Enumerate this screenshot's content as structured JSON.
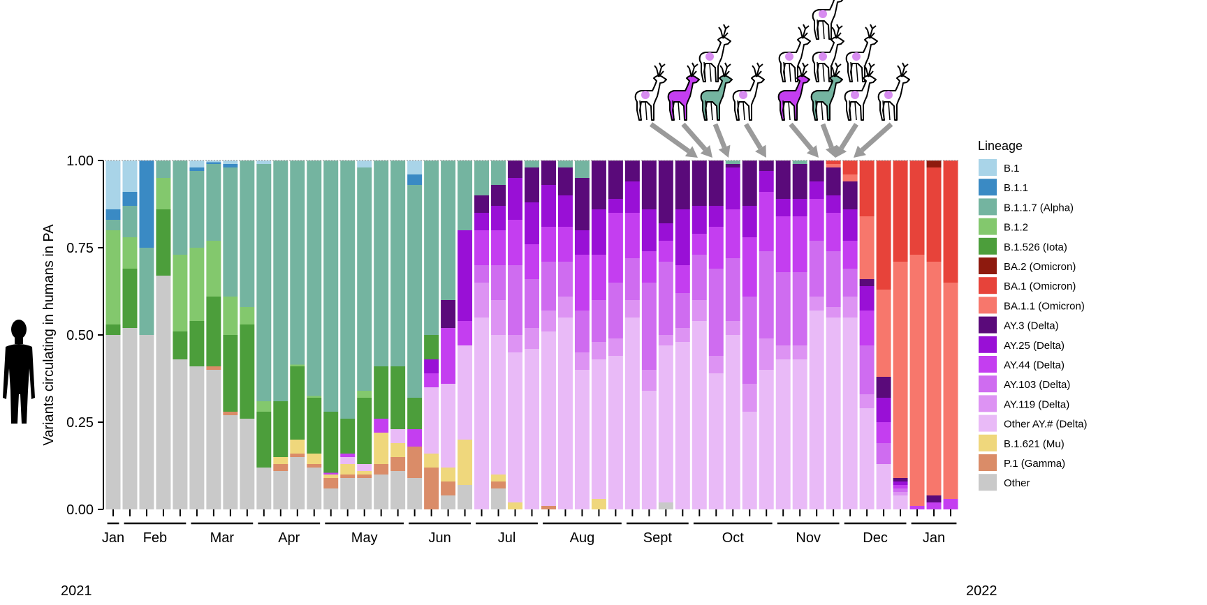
{
  "colors": {
    "B.1": "#a9d4e8",
    "B.1.1": "#3a8ac4",
    "B.1.1.7 (Alpha)": "#74b4a0",
    "B.1.2": "#83c86d",
    "B.1.526 (Iota)": "#4c9e3b",
    "BA.2 (Omicron)": "#8e1a0e",
    "BA.1 (Omicron)": "#e7433a",
    "BA.1.1 (Omicron)": "#f7776c",
    "AY.3 (Delta)": "#5a0a7a",
    "AY.25 (Delta)": "#9910d6",
    "AY.44 (Delta)": "#c43ef0",
    "AY.103 (Delta)": "#cf6cf0",
    "AY.119 (Delta)": "#dd93f3",
    "Other AY.# (Delta)": "#e9baf7",
    "B.1.621 (Mu)": "#efd77c",
    "P.1 (Gamma)": "#da8c68",
    "Other": "#c9c9c9",
    "arrow": "#9a9a9a",
    "deer_white": "#ffffff",
    "deer_dot": "#d78cf0"
  },
  "icons": [
    "human-silhouette-icon",
    "deer-icon"
  ],
  "chart_data": {
    "type": "bar",
    "stacked": true,
    "ylabel": "Variants circulating in humans in PA",
    "ylim": [
      0,
      1
    ],
    "yticks": [
      "0.00",
      "0.25",
      "0.50",
      "0.75",
      "1.00"
    ],
    "xlabel": "",
    "year_labels": [
      "2021",
      "2022"
    ],
    "months": [
      {
        "label": "Jan",
        "from": 0,
        "to": 0
      },
      {
        "label": "Feb",
        "from": 1,
        "to": 4
      },
      {
        "label": "Mar",
        "from": 5,
        "to": 8
      },
      {
        "label": "Apr",
        "from": 9,
        "to": 12
      },
      {
        "label": "May",
        "from": 13,
        "to": 17
      },
      {
        "label": "Jun",
        "from": 18,
        "to": 21
      },
      {
        "label": "Jul",
        "from": 22,
        "to": 25
      },
      {
        "label": "Aug",
        "from": 26,
        "to": 30
      },
      {
        "label": "Sept",
        "from": 31,
        "to": 34
      },
      {
        "label": "Oct",
        "from": 35,
        "to": 39
      },
      {
        "label": "Nov",
        "from": 40,
        "to": 43
      },
      {
        "label": "Dec",
        "from": 44,
        "to": 47
      },
      {
        "label": "Jan",
        "from": 48,
        "to": 50
      }
    ],
    "legend_title": "Lineage",
    "legend_position": "right",
    "series_order": [
      "Other",
      "P.1 (Gamma)",
      "B.1.621 (Mu)",
      "Other AY.# (Delta)",
      "AY.119 (Delta)",
      "AY.103 (Delta)",
      "AY.44 (Delta)",
      "AY.25 (Delta)",
      "AY.3 (Delta)",
      "BA.1.1 (Omicron)",
      "BA.1 (Omicron)",
      "BA.2 (Omicron)",
      "B.1.526 (Iota)",
      "B.1.2",
      "B.1.1.7 (Alpha)",
      "B.1.1",
      "B.1"
    ],
    "legend": [
      "B.1",
      "B.1.1",
      "B.1.1.7 (Alpha)",
      "B.1.2",
      "B.1.526 (Iota)",
      "BA.2 (Omicron)",
      "BA.1 (Omicron)",
      "BA.1.1 (Omicron)",
      "AY.3 (Delta)",
      "AY.25 (Delta)",
      "AY.44 (Delta)",
      "AY.103 (Delta)",
      "AY.119 (Delta)",
      "Other AY.# (Delta)",
      "B.1.621 (Mu)",
      "P.1 (Gamma)",
      "Other"
    ],
    "bars": [
      {
        "Other": 0.5,
        "B.1.526 (Iota)": 0.03,
        "B.1.2": 0.27,
        "B.1.1.7 (Alpha)": 0.03,
        "B.1.1": 0.03,
        "B.1": 0.14
      },
      {
        "Other": 0.52,
        "B.1.526 (Iota)": 0.17,
        "B.1.2": 0.09,
        "B.1.1.7 (Alpha)": 0.09,
        "B.1.1": 0.04,
        "B.1": 0.09
      },
      {
        "Other": 0.5,
        "B.1.1.7 (Alpha)": 0.25,
        "B.1.1": 0.25
      },
      {
        "Other": 0.67,
        "B.1.526 (Iota)": 0.19,
        "B.1.2": 0.09,
        "B.1.1.7 (Alpha)": 0.05
      },
      {
        "Other": 0.43,
        "B.1.526 (Iota)": 0.08,
        "B.1.2": 0.22,
        "B.1.1.7 (Alpha)": 0.27
      },
      {
        "Other": 0.41,
        "B.1.526 (Iota)": 0.13,
        "B.1.2": 0.21,
        "B.1.1.7 (Alpha)": 0.22,
        "B.1.1": 0.01,
        "B.1": 0.02
      },
      {
        "Other": 0.4,
        "P.1 (Gamma)": 0.01,
        "B.1.526 (Iota)": 0.2,
        "B.1.2": 0.16,
        "B.1.1.7 (Alpha)": 0.22,
        "B.1.1": 0.005,
        "B.1": 0.005
      },
      {
        "Other": 0.27,
        "P.1 (Gamma)": 0.01,
        "B.1.526 (Iota)": 0.22,
        "B.1.2": 0.11,
        "B.1.1.7 (Alpha)": 0.37,
        "B.1.1": 0.01,
        "B.1": 0.01
      },
      {
        "Other": 0.26,
        "B.1.526 (Iota)": 0.27,
        "B.1.2": 0.05,
        "B.1.1.7 (Alpha)": 0.42
      },
      {
        "Other": 0.12,
        "B.1.526 (Iota)": 0.16,
        "B.1.2": 0.03,
        "B.1.1.7 (Alpha)": 0.68,
        "B.1": 0.01
      },
      {
        "Other": 0.11,
        "P.1 (Gamma)": 0.02,
        "B.1.621 (Mu)": 0.02,
        "B.1.526 (Iota)": 0.16,
        "B.1.1.7 (Alpha)": 0.69
      },
      {
        "Other": 0.15,
        "P.1 (Gamma)": 0.01,
        "B.1.621 (Mu)": 0.04,
        "B.1.526 (Iota)": 0.21,
        "B.1.2": 0.005,
        "B.1.1.7 (Alpha)": 0.585
      },
      {
        "Other": 0.12,
        "P.1 (Gamma)": 0.01,
        "B.1.621 (Mu)": 0.03,
        "B.1.526 (Iota)": 0.16,
        "B.1.2": 0.005,
        "B.1.1.7 (Alpha)": 0.675
      },
      {
        "Other": 0.06,
        "P.1 (Gamma)": 0.03,
        "B.1.621 (Mu)": 0.01,
        "AY.44 (Delta)": 0.005,
        "B.1.526 (Iota)": 0.175,
        "B.1.1.7 (Alpha)": 0.72
      },
      {
        "Other": 0.09,
        "P.1 (Gamma)": 0.01,
        "B.1.621 (Mu)": 0.03,
        "Other AY.# (Delta)": 0.02,
        "AY.44 (Delta)": 0.01,
        "B.1.526 (Iota)": 0.1,
        "B.1.1.7 (Alpha)": 0.74
      },
      {
        "Other": 0.09,
        "P.1 (Gamma)": 0.01,
        "B.1.621 (Mu)": 0.01,
        "Other AY.# (Delta)": 0.02,
        "B.1.526 (Iota)": 0.19,
        "B.1.2": 0.02,
        "B.1.1.7 (Alpha)": 0.64,
        "B.1": 0.02
      },
      {
        "Other": 0.1,
        "P.1 (Gamma)": 0.03,
        "B.1.621 (Mu)": 0.09,
        "AY.44 (Delta)": 0.04,
        "B.1.526 (Iota)": 0.15,
        "B.1.1.7 (Alpha)": 0.59
      },
      {
        "Other": 0.11,
        "P.1 (Gamma)": 0.04,
        "B.1.621 (Mu)": 0.04,
        "Other AY.# (Delta)": 0.04,
        "B.1.526 (Iota)": 0.18,
        "B.1.1.7 (Alpha)": 0.59
      },
      {
        "Other": 0.09,
        "P.1 (Gamma)": 0.09,
        "AY.44 (Delta)": 0.05,
        "B.1.526 (Iota)": 0.09,
        "B.1.1.7 (Alpha)": 0.61,
        "B.1.1": 0.03,
        "B.1": 0.04
      },
      {
        "P.1 (Gamma)": 0.12,
        "B.1.621 (Mu)": 0.04,
        "Other AY.# (Delta)": 0.19,
        "AY.44 (Delta)": 0.04,
        "AY.25 (Delta)": 0.04,
        "B.1.526 (Iota)": 0.07,
        "B.1.1.7 (Alpha)": 0.5
      },
      {
        "Other": 0.04,
        "P.1 (Gamma)": 0.04,
        "B.1.621 (Mu)": 0.04,
        "Other AY.# (Delta)": 0.24,
        "AY.44 (Delta)": 0.16,
        "AY.3 (Delta)": 0.08,
        "B.1.1.7 (Alpha)": 0.4
      },
      {
        "Other": 0.07,
        "B.1.621 (Mu)": 0.13,
        "Other AY.# (Delta)": 0.27,
        "AY.44 (Delta)": 0.07,
        "AY.25 (Delta)": 0.26,
        "B.1.1.7 (Alpha)": 0.2
      },
      {
        "Other AY.# (Delta)": 0.55,
        "AY.119 (Delta)": 0.1,
        "AY.103 (Delta)": 0.05,
        "AY.44 (Delta)": 0.1,
        "AY.25 (Delta)": 0.05,
        "AY.3 (Delta)": 0.05,
        "B.1.1.7 (Alpha)": 0.1
      },
      {
        "Other": 0.06,
        "P.1 (Gamma)": 0.02,
        "B.1.621 (Mu)": 0.02,
        "Other AY.# (Delta)": 0.4,
        "AY.119 (Delta)": 0.1,
        "AY.103 (Delta)": 0.1,
        "AY.44 (Delta)": 0.1,
        "AY.25 (Delta)": 0.07,
        "AY.3 (Delta)": 0.06,
        "B.1.1.7 (Alpha)": 0.07
      },
      {
        "B.1.621 (Mu)": 0.02,
        "Other AY.# (Delta)": 0.43,
        "AY.119 (Delta)": 0.05,
        "AY.103 (Delta)": 0.2,
        "AY.44 (Delta)": 0.13,
        "AY.25 (Delta)": 0.12,
        "AY.3 (Delta)": 0.05
      },
      {
        "Other AY.# (Delta)": 0.46,
        "AY.119 (Delta)": 0.06,
        "AY.103 (Delta)": 0.14,
        "AY.44 (Delta)": 0.1,
        "AY.25 (Delta)": 0.12,
        "AY.3 (Delta)": 0.1,
        "B.1.1.7 (Alpha)": 0.02
      },
      {
        "P.1 (Gamma)": 0.01,
        "Other AY.# (Delta)": 0.5,
        "AY.119 (Delta)": 0.06,
        "AY.103 (Delta)": 0.14,
        "AY.44 (Delta)": 0.1,
        "AY.25 (Delta)": 0.12,
        "AY.3 (Delta)": 0.07
      },
      {
        "Other AY.# (Delta)": 0.55,
        "AY.119 (Delta)": 0.06,
        "AY.103 (Delta)": 0.1,
        "AY.44 (Delta)": 0.1,
        "AY.25 (Delta)": 0.09,
        "AY.3 (Delta)": 0.08,
        "B.1.1.7 (Alpha)": 0.02
      },
      {
        "Other AY.# (Delta)": 0.4,
        "AY.119 (Delta)": 0.05,
        "AY.103 (Delta)": 0.12,
        "AY.44 (Delta)": 0.16,
        "AY.25 (Delta)": 0.07,
        "AY.3 (Delta)": 0.15,
        "B.1.1.7 (Alpha)": 0.05
      },
      {
        "B.1.621 (Mu)": 0.03,
        "Other AY.# (Delta)": 0.4,
        "AY.119 (Delta)": 0.05,
        "AY.103 (Delta)": 0.12,
        "AY.44 (Delta)": 0.13,
        "AY.25 (Delta)": 0.13,
        "AY.3 (Delta)": 0.14
      },
      {
        "Other AY.# (Delta)": 0.44,
        "AY.119 (Delta)": 0.05,
        "AY.103 (Delta)": 0.16,
        "AY.44 (Delta)": 0.2,
        "AY.25 (Delta)": 0.04,
        "AY.3 (Delta)": 0.11
      },
      {
        "Other AY.# (Delta)": 0.55,
        "AY.119 (Delta)": 0.05,
        "AY.103 (Delta)": 0.12,
        "AY.44 (Delta)": 0.13,
        "AY.25 (Delta)": 0.09,
        "AY.3 (Delta)": 0.06
      },
      {
        "Other AY.# (Delta)": 0.34,
        "AY.119 (Delta)": 0.06,
        "AY.103 (Delta)": 0.25,
        "AY.44 (Delta)": 0.09,
        "AY.25 (Delta)": 0.12,
        "AY.3 (Delta)": 0.14
      },
      {
        "Other": 0.02,
        "Other AY.# (Delta)": 0.45,
        "AY.119 (Delta)": 0.03,
        "AY.103 (Delta)": 0.21,
        "AY.44 (Delta)": 0.06,
        "AY.25 (Delta)": 0.05,
        "AY.3 (Delta)": 0.18
      },
      {
        "Other AY.# (Delta)": 0.48,
        "AY.119 (Delta)": 0.04,
        "AY.103 (Delta)": 0.1,
        "AY.44 (Delta)": 0.08,
        "AY.25 (Delta)": 0.16,
        "AY.3 (Delta)": 0.14
      },
      {
        "Other AY.# (Delta)": 0.54,
        "AY.119 (Delta)": 0.06,
        "AY.103 (Delta)": 0.13,
        "AY.44 (Delta)": 0.06,
        "AY.25 (Delta)": 0.08,
        "AY.3 (Delta)": 0.13
      },
      {
        "Other AY.# (Delta)": 0.39,
        "AY.119 (Delta)": 0.05,
        "AY.103 (Delta)": 0.25,
        "AY.44 (Delta)": 0.12,
        "AY.25 (Delta)": 0.06,
        "AY.3 (Delta)": 0.13
      },
      {
        "Other AY.# (Delta)": 0.5,
        "AY.119 (Delta)": 0.04,
        "AY.103 (Delta)": 0.18,
        "AY.44 (Delta)": 0.14,
        "AY.25 (Delta)": 0.12,
        "AY.3 (Delta)": 0.01,
        "B.1.1.7 (Alpha)": 0.01
      },
      {
        "Other AY.# (Delta)": 0.28,
        "AY.119 (Delta)": 0.08,
        "AY.103 (Delta)": 0.25,
        "AY.44 (Delta)": 0.17,
        "AY.25 (Delta)": 0.09,
        "AY.3 (Delta)": 0.13
      },
      {
        "Other AY.# (Delta)": 0.4,
        "AY.119 (Delta)": 0.09,
        "AY.103 (Delta)": 0.25,
        "AY.44 (Delta)": 0.17,
        "AY.25 (Delta)": 0.06,
        "AY.3 (Delta)": 0.03
      },
      {
        "Other AY.# (Delta)": 0.43,
        "AY.119 (Delta)": 0.04,
        "AY.103 (Delta)": 0.21,
        "AY.44 (Delta)": 0.16,
        "AY.25 (Delta)": 0.05,
        "AY.3 (Delta)": 0.11
      },
      {
        "Other AY.# (Delta)": 0.43,
        "AY.119 (Delta)": 0.04,
        "AY.103 (Delta)": 0.21,
        "AY.44 (Delta)": 0.16,
        "AY.25 (Delta)": 0.05,
        "AY.3 (Delta)": 0.1,
        "B.1.1.7 (Alpha)": 0.01
      },
      {
        "Other AY.# (Delta)": 0.57,
        "AY.119 (Delta)": 0.04,
        "AY.103 (Delta)": 0.16,
        "AY.44 (Delta)": 0.12,
        "AY.25 (Delta)": 0.05,
        "AY.3 (Delta)": 0.06
      },
      {
        "Other AY.# (Delta)": 0.55,
        "AY.119 (Delta)": 0.03,
        "AY.103 (Delta)": 0.16,
        "AY.44 (Delta)": 0.11,
        "AY.25 (Delta)": 0.05,
        "AY.3 (Delta)": 0.08,
        "BA.1.1 (Omicron)": 0.01,
        "BA.1 (Omicron)": 0.01
      },
      {
        "Other AY.# (Delta)": 0.55,
        "AY.119 (Delta)": 0.06,
        "AY.103 (Delta)": 0.08,
        "AY.44 (Delta)": 0.08,
        "AY.25 (Delta)": 0.09,
        "AY.3 (Delta)": 0.08,
        "BA.1.1 (Omicron)": 0.02,
        "BA.1 (Omicron)": 0.04
      },
      {
        "Other AY.# (Delta)": 0.29,
        "AY.119 (Delta)": 0.04,
        "AY.103 (Delta)": 0.14,
        "AY.44 (Delta)": 0.1,
        "AY.25 (Delta)": 0.07,
        "AY.3 (Delta)": 0.02,
        "BA.1.1 (Omicron)": 0.18,
        "BA.1 (Omicron)": 0.16
      },
      {
        "Other AY.# (Delta)": 0.13,
        "AY.103 (Delta)": 0.06,
        "AY.44 (Delta)": 0.06,
        "AY.25 (Delta)": 0.07,
        "AY.3 (Delta)": 0.06,
        "BA.1.1 (Omicron)": 0.25,
        "BA.1 (Omicron)": 0.37
      },
      {
        "Other AY.# (Delta)": 0.04,
        "AY.119 (Delta)": 0.01,
        "AY.103 (Delta)": 0.01,
        "AY.44 (Delta)": 0.01,
        "AY.25 (Delta)": 0.01,
        "AY.3 (Delta)": 0.01,
        "BA.1.1 (Omicron)": 0.62,
        "BA.1 (Omicron)": 0.29
      },
      {
        "AY.44 (Delta)": 0.01,
        "BA.1.1 (Omicron)": 0.72,
        "BA.1 (Omicron)": 0.27
      },
      {
        "AY.44 (Delta)": 0.02,
        "AY.3 (Delta)": 0.02,
        "BA.1.1 (Omicron)": 0.67,
        "BA.1 (Omicron)": 0.27,
        "BA.2 (Omicron)": 0.02
      },
      {
        "AY.44 (Delta)": 0.03,
        "BA.1.1 (Omicron)": 0.62,
        "BA.1 (Omicron)": 0.35
      }
    ]
  },
  "deer_rows": [
    [
      "Other AY.# (Delta)"
    ],
    [
      "Other AY.# (Delta)",
      "Other AY.# (Delta)",
      "Other AY.# (Delta)",
      "Other AY.# (Delta)"
    ],
    [
      "Other AY.# (Delta)",
      "AY.44 (Delta)",
      "B.1.1.7 (Alpha)",
      "Other AY.# (Delta)",
      "AY.44 (Delta)",
      "B.1.1.7 (Alpha)",
      "Other AY.# (Delta)",
      "Other AY.# (Delta)"
    ]
  ]
}
